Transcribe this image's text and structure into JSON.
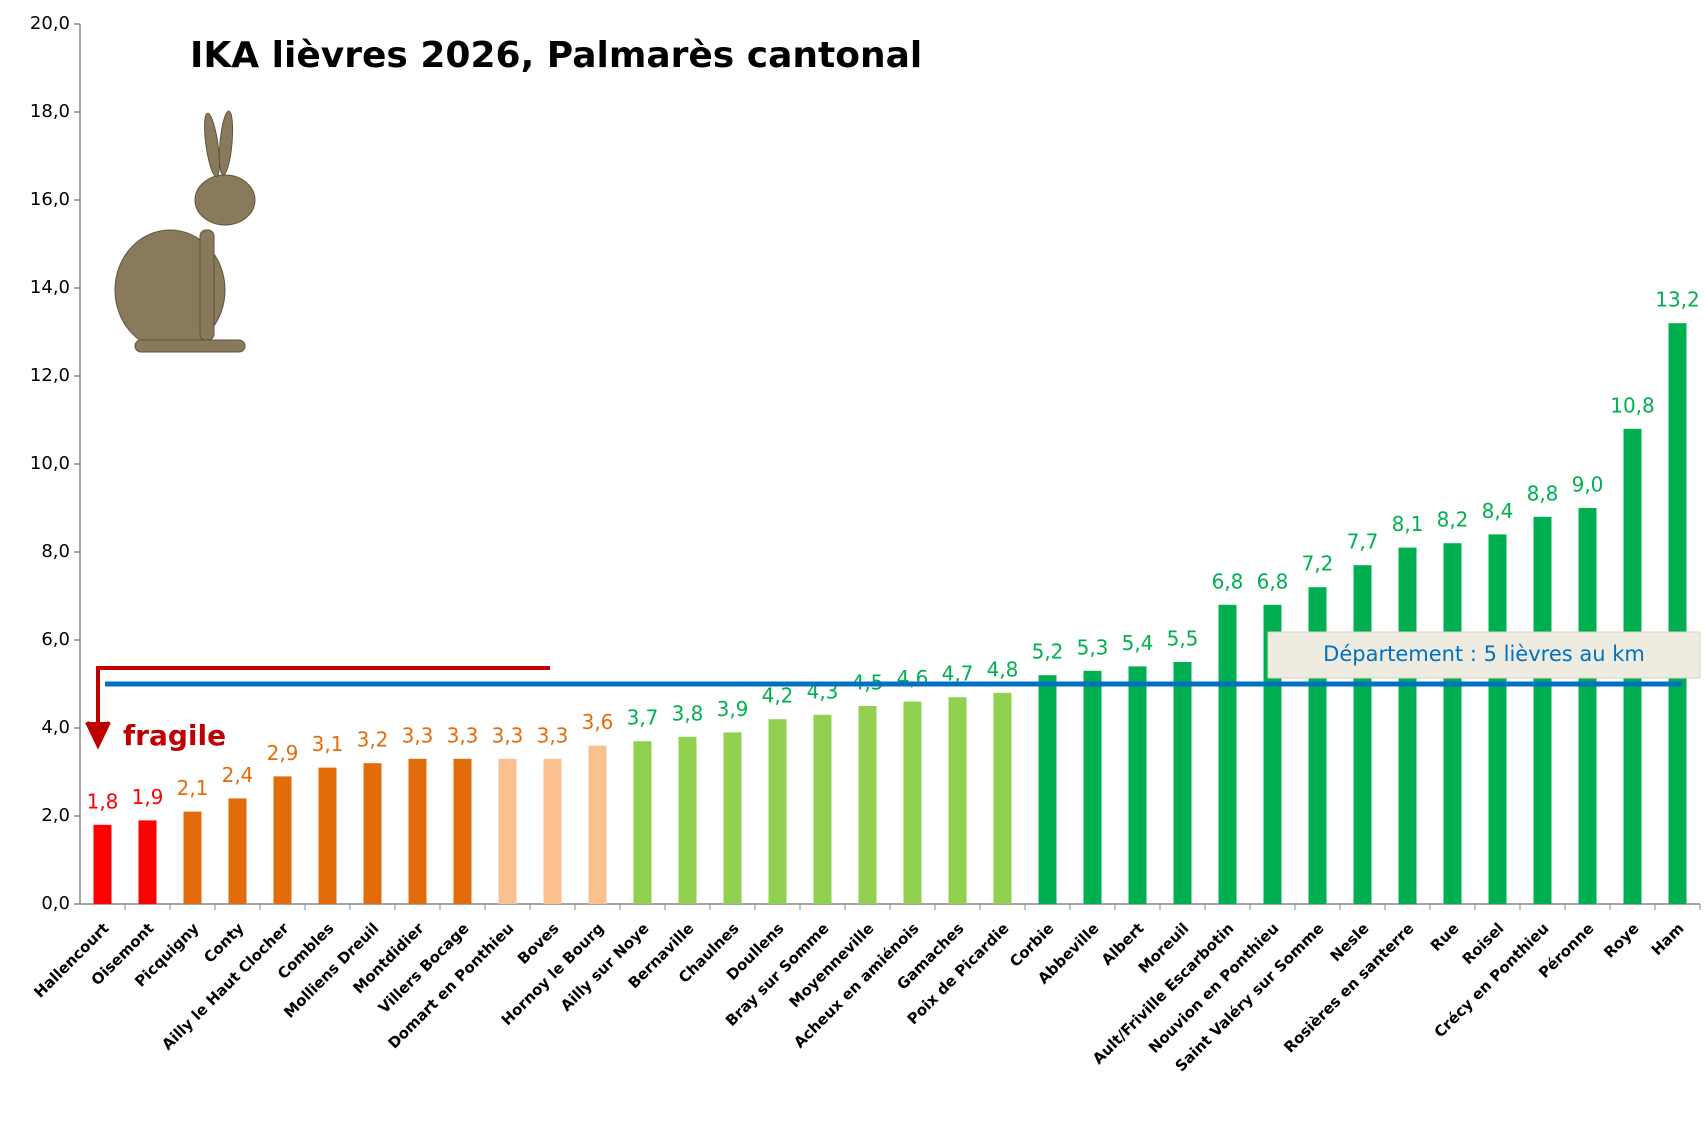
{
  "chart_data": {
    "type": "bar",
    "title": "IKA lièvres 2026, Palmarès cantonal",
    "categories": [
      "Hallencourt",
      "Oisemont",
      "Picquigny",
      "Conty",
      "Ailly le Haut Clocher",
      "Combles",
      "Molliens Dreuil",
      "Montdidier",
      "Villers Bocage",
      "Domart en Ponthieu",
      "Boves",
      "Hornoy le Bourg",
      "Ailly sur Noye",
      "Bernaville",
      "Chaulnes",
      "Doullens",
      "Bray sur Somme",
      "Moyenneville",
      "Acheux en amiénois",
      "Gamaches",
      "Poix de Picardie",
      "Corbie",
      "Abbeville",
      "Albert",
      "Moreuil",
      "Ault/Friville Escarbotin",
      "Nouvion en Ponthieu",
      "Saint Valéry sur Somme",
      "Nesle",
      "Rosières en santerre",
      "Rue",
      "Roisel",
      "Crécy en Ponthieu",
      "Péronne",
      "Roye",
      "Ham"
    ],
    "values": [
      1.8,
      1.9,
      2.1,
      2.4,
      2.9,
      3.1,
      3.2,
      3.3,
      3.3,
      3.3,
      3.3,
      3.6,
      3.7,
      3.8,
      3.9,
      4.2,
      4.3,
      4.5,
      4.6,
      4.7,
      4.8,
      5.2,
      5.3,
      5.4,
      5.5,
      6.8,
      6.8,
      7.2,
      7.7,
      8.1,
      8.2,
      8.4,
      8.8,
      9.0,
      10.8,
      13.2
    ],
    "value_labels": [
      "1,8",
      "1,9",
      "2,1",
      "2,4",
      "2,9",
      "3,1",
      "3,2",
      "3,3",
      "3,3",
      "3,3",
      "3,3",
      "3,6",
      "3,7",
      "3,8",
      "3,9",
      "4,2",
      "4,3",
      "4,5",
      "4,6",
      "4,7",
      "4,8",
      "5,2",
      "5,3",
      "5,4",
      "5,5",
      "6,8",
      "6,8",
      "7,2",
      "7,7",
      "8,1",
      "8,2",
      "8,4",
      "8,8",
      "9,0",
      "10,8",
      "13,2"
    ],
    "colors": [
      "#ff0000",
      "#ff0000",
      "#e36c0a",
      "#e36c0a",
      "#e36c0a",
      "#e36c0a",
      "#e36c0a",
      "#e36c0a",
      "#e36c0a",
      "#fac090",
      "#fac090",
      "#fac090",
      "#92d050",
      "#92d050",
      "#92d050",
      "#92d050",
      "#92d050",
      "#92d050",
      "#92d050",
      "#92d050",
      "#92d050",
      "#00b050",
      "#00b050",
      "#00b050",
      "#00b050",
      "#00b050",
      "#00b050",
      "#00b050",
      "#00b050",
      "#00b050",
      "#00b050",
      "#00b050",
      "#00b050",
      "#00b050",
      "#00b050",
      "#00b050"
    ],
    "label_colors": [
      "#ff0000",
      "#ff0000",
      "#e36c0a",
      "#e36c0a",
      "#e36c0a",
      "#e36c0a",
      "#e36c0a",
      "#e36c0a",
      "#e36c0a",
      "#e36c0a",
      "#e36c0a",
      "#e36c0a",
      "#00b050",
      "#00b050",
      "#00b050",
      "#00b050",
      "#00b050",
      "#00b050",
      "#00b050",
      "#00b050",
      "#00b050",
      "#00b050",
      "#00b050",
      "#00b050",
      "#00b050",
      "#00b050",
      "#00b050",
      "#00b050",
      "#00b050",
      "#00b050",
      "#00b050",
      "#00b050",
      "#00b050",
      "#00b050",
      "#00b050",
      "#00b050"
    ],
    "ylim": [
      0,
      20
    ],
    "yticks": [
      {
        "value": 0,
        "label": "0,0"
      },
      {
        "value": 2,
        "label": "2,0"
      },
      {
        "value": 4,
        "label": "4,0"
      },
      {
        "value": 6,
        "label": "6,0"
      },
      {
        "value": 8,
        "label": "8,0"
      },
      {
        "value": 10,
        "label": "10,0"
      },
      {
        "value": 12,
        "label": "12,0"
      },
      {
        "value": 14,
        "label": "14,0"
      },
      {
        "value": 16,
        "label": "16,0"
      },
      {
        "value": 18,
        "label": "18,0"
      },
      {
        "value": 20,
        "label": "20,0"
      }
    ],
    "grid": false,
    "reference_line": {
      "value": 5,
      "label": "Département : 5 lièvres au km",
      "color": "#0070c0"
    },
    "annotation": "fragile"
  }
}
